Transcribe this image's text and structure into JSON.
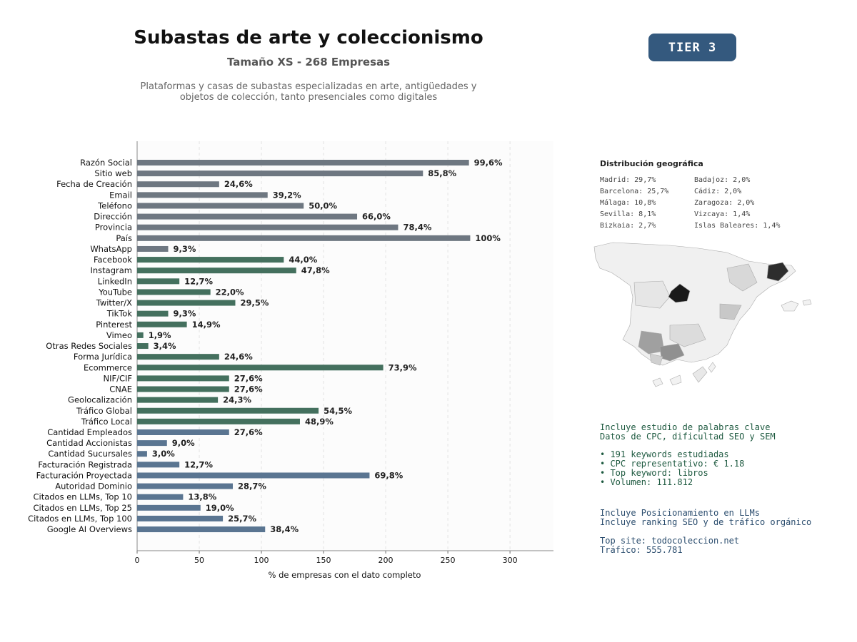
{
  "header": {
    "title": "Subastas de arte y coleccionismo",
    "subtitle": "Tamaño XS - 268 Empresas",
    "description_line1": "Plataformas y casas de subastas especializadas en arte, antigüedades y",
    "description_line2": "objetos de colección, tanto presenciales como digitales",
    "tier": "TIER 3"
  },
  "chart_data": {
    "type": "bar",
    "orientation": "horizontal",
    "xlabel": "% de empresas con el dato completo",
    "xlim": [
      0,
      335
    ],
    "xticks": [
      0,
      50,
      100,
      150,
      200,
      250,
      300
    ],
    "grid": "vertical dashed",
    "categories": [
      "Razón Social",
      "Sitio web",
      "Fecha de Creación",
      "Email",
      "Teléfono",
      "Dirección",
      "Provincia",
      "País",
      "WhatsApp",
      "Facebook",
      "Instagram",
      "LinkedIn",
      "YouTube",
      "Twitter/X",
      "TikTok",
      "Pinterest",
      "Vimeo",
      "Otras Redes Sociales",
      "Forma Jurídica",
      "Ecommerce",
      "NIF/CIF",
      "CNAE",
      "Geolocalización",
      "Tráfico Global",
      "Tráfico Local",
      "Cantidad Empleados",
      "Cantidad Accionistas",
      "Cantidad Sucursales",
      "Facturación Registrada",
      "Facturación Proyectada",
      "Autoridad Dominio",
      "Citados en LLMs, Top 10",
      "Citados en LLMs, Top 25",
      "Citados en LLMs, Top 100",
      "Google AI Overviews"
    ],
    "values": [
      267,
      230,
      66,
      105,
      134,
      177,
      210,
      268,
      25,
      118,
      128,
      34,
      59,
      79,
      25,
      40,
      5,
      9,
      66,
      198,
      74,
      74,
      65,
      146,
      131,
      74,
      24,
      8,
      34,
      187,
      77,
      37,
      51,
      69,
      103
    ],
    "labels": [
      "99,6%",
      "85,8%",
      "24,6%",
      "39,2%",
      "50,0%",
      "66,0%",
      "78,4%",
      "100%",
      "9,3%",
      "44,0%",
      "47,8%",
      "12,7%",
      "22,0%",
      "29,5%",
      "9,3%",
      "14,9%",
      "1,9%",
      "3,4%",
      "24,6%",
      "73,9%",
      "27,6%",
      "27,6%",
      "24,3%",
      "54,5%",
      "48,9%",
      "27,6%",
      "9,0%",
      "3,0%",
      "12,7%",
      "69,8%",
      "28,7%",
      "13,8%",
      "19,0%",
      "25,7%",
      "38,4%"
    ],
    "colors": [
      "#6e7781",
      "#6e7781",
      "#6e7781",
      "#6e7781",
      "#6e7781",
      "#6e7781",
      "#6e7781",
      "#6e7781",
      "#6e7781",
      "#44705e",
      "#44705e",
      "#44705e",
      "#44705e",
      "#44705e",
      "#44705e",
      "#44705e",
      "#44705e",
      "#44705e",
      "#44705e",
      "#44705e",
      "#44705e",
      "#44705e",
      "#44705e",
      "#44705e",
      "#44705e",
      "#5a7591",
      "#5a7591",
      "#5a7591",
      "#5a7591",
      "#5a7591",
      "#5a7591",
      "#5a7591",
      "#5a7591",
      "#5a7591",
      "#5a7591"
    ]
  },
  "geo": {
    "title": "Distribución geográfica",
    "left": [
      "Madrid: 29,7%",
      "Barcelona: 25,7%",
      "Málaga: 10,8%",
      "Sevilla: 8,1%",
      "Bizkaia: 2,7%"
    ],
    "right": [
      "Badajoz: 2,0%",
      "Cádiz: 2,0%",
      "Zaragoza: 2,0%",
      "Vizcaya: 1,4%",
      "Islas Baleares: 1,4%"
    ]
  },
  "keywords": {
    "line1": "Incluye estudio de palabras clave",
    "line2": "Datos de CPC, dificultad SEO y SEM",
    "b1": "• 191 keywords estudiadas",
    "b2": "• CPC representativo: € 1.18",
    "b3": "• Top keyword: libros",
    "b4": "• Volumen: 111.812"
  },
  "llm": {
    "line1": "Incluye Posicionamiento en LLMs",
    "line2": "Incluye ranking SEO y de tráfico orgánico",
    "line3": "Top site: todocoleccion.net",
    "line4": "Tráfico: 555.781"
  }
}
